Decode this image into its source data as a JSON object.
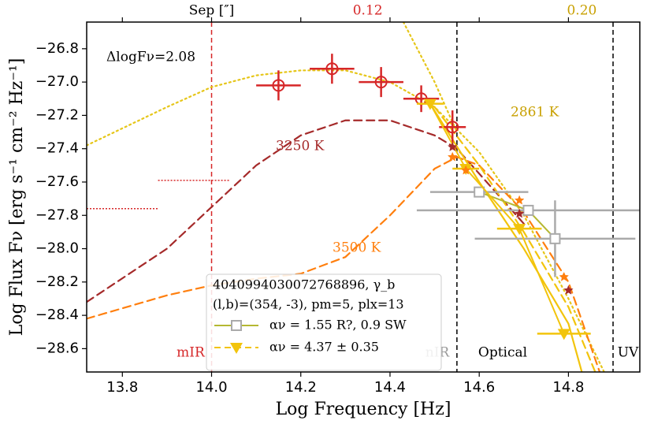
{
  "chart_data": {
    "type": "scatter",
    "xlabel": "Log Frequency [Hz]",
    "ylabel": "Log Flux Fν [erg s⁻¹ cm⁻² Hz⁻¹]",
    "xlim": [
      13.72,
      14.96
    ],
    "ylim": [
      -28.74,
      -26.64
    ],
    "xticks": [
      13.8,
      {
        "value": 14.0,
        "label": "14.0"
      },
      14.2,
      14.4,
      14.6,
      14.8
    ],
    "yticks": [
      {
        "value": -26.8,
        "label": "−26.8"
      },
      {
        "value": -27.0,
        "label": "−27.0"
      },
      {
        "value": -27.2,
        "label": "−27.2"
      },
      {
        "value": -27.4,
        "label": "−27.4"
      },
      {
        "value": -27.6,
        "label": "−27.6"
      },
      {
        "value": -27.8,
        "label": "−27.8"
      },
      {
        "value": -28.0,
        "label": "−28.0"
      },
      {
        "value": -28.2,
        "label": "−28.2"
      },
      {
        "value": -28.4,
        "label": "−28.4"
      },
      {
        "value": -28.6,
        "label": "−28.6"
      }
    ],
    "curves": [
      {
        "color": "#e6c619",
        "style": "dotted",
        "x": [
          13.72,
          13.9,
          14.0,
          14.1,
          14.2,
          14.3,
          14.4,
          14.5,
          14.6,
          14.7,
          14.8,
          14.88
        ],
        "values": [
          -27.38,
          -27.15,
          -27.03,
          -26.96,
          -26.93,
          -26.93,
          -27.0,
          -27.15,
          -27.42,
          -27.8,
          -28.3,
          -28.74
        ]
      },
      {
        "color": "#e6c619",
        "style": "dotted",
        "x": [
          14.43,
          14.5,
          14.55
        ],
        "values": [
          -26.64,
          -27.0,
          -27.3
        ]
      },
      {
        "color": "#a52a2a",
        "style": "dashed",
        "x": [
          13.72,
          13.9,
          14.0,
          14.1,
          14.2,
          14.3,
          14.4,
          14.5,
          14.55,
          14.6,
          14.7
        ],
        "values": [
          -28.32,
          -28.0,
          -27.75,
          -27.5,
          -27.32,
          -27.23,
          -27.23,
          -27.32,
          -27.4,
          -27.55,
          -27.85
        ]
      },
      {
        "color": "#ff7f0e",
        "style": "dashed",
        "x": [
          13.72,
          13.9,
          14.0,
          14.1,
          14.2,
          14.3,
          14.4,
          14.5,
          14.55,
          14.6,
          14.7,
          14.8,
          14.87
        ],
        "values": [
          -28.42,
          -28.28,
          -28.22,
          -28.18,
          -28.15,
          -28.05,
          -27.8,
          -27.52,
          -27.45,
          -27.5,
          -27.78,
          -28.2,
          -28.74
        ]
      },
      {
        "color": "#f2c40c",
        "style": "dashed",
        "x": [
          14.5,
          14.6,
          14.7,
          14.8,
          14.86
        ],
        "values": [
          -27.15,
          -27.5,
          -27.9,
          -28.35,
          -28.74
        ]
      },
      {
        "color": "#f2c40c",
        "style": "solid",
        "x": [
          14.49,
          14.6,
          14.7,
          14.8,
          14.83
        ],
        "values": [
          -27.13,
          -27.6,
          -28.0,
          -28.45,
          -28.74
        ]
      }
    ],
    "limits": [
      {
        "color": "#d62728",
        "x": [
          13.72,
          13.88
        ],
        "value": -27.76
      },
      {
        "color": "#d62728",
        "x": [
          13.88,
          14.04
        ],
        "value": -27.59
      }
    ],
    "series": [
      {
        "color": "#d62728",
        "marker": "circle",
        "x": [
          14.15,
          14.27,
          14.38,
          14.47,
          14.54
        ],
        "values": [
          -27.02,
          -26.92,
          -27.0,
          -27.1,
          -27.27
        ],
        "xerr": [
          0.05,
          0.05,
          0.05,
          0.04,
          0.03
        ],
        "yerr": [
          0.09,
          0.09,
          0.09,
          0.08,
          0.1
        ]
      },
      {
        "name": "αν = 1.55   R?, 0.9 SW",
        "color": "#aaaaaa",
        "line": "#b5b832",
        "marker": "square",
        "x": [
          14.6,
          14.71,
          14.77
        ],
        "values": [
          -27.66,
          -27.77,
          -27.94
        ],
        "xerr": [
          0.11,
          0.25,
          0.18
        ],
        "yerr": [
          0.02,
          0.0,
          0.23
        ]
      },
      {
        "name": "αν = 4.37 ± 0.35",
        "color": "#f2c40c",
        "line": "#f2c40c",
        "marker": "triangle",
        "x": [
          14.49,
          14.57,
          14.69,
          14.79
        ],
        "values": [
          -27.13,
          -27.52,
          -27.88,
          -28.51
        ],
        "xerr": [
          0.03,
          0.03,
          0.05,
          0.06
        ],
        "yerr": [
          0.0,
          0.0,
          0.0,
          0.0
        ]
      },
      {
        "color": "#a52a2a",
        "marker": "star",
        "x": [
          14.54,
          14.69,
          14.8
        ],
        "values": [
          -27.39,
          -27.79,
          -28.25
        ]
      },
      {
        "color": "#ff7f0e",
        "marker": "star",
        "x": [
          14.54,
          14.57,
          14.69,
          14.79
        ],
        "values": [
          -27.45,
          -27.53,
          -27.71,
          -28.17
        ]
      }
    ],
    "vlines": [
      {
        "x": 14.0,
        "color": "#d62728"
      },
      {
        "x": 14.55,
        "color": "#000000"
      },
      {
        "x": 14.9,
        "color": "#000000"
      }
    ],
    "regions": [
      {
        "text": "mIR",
        "color": "#d62728"
      },
      {
        "text": "nIR",
        "color": "#999999"
      },
      {
        "text": "Optical",
        "color": "#000000"
      },
      {
        "text": "UV",
        "color": "#000000"
      }
    ],
    "top_labels": [
      {
        "text": "Sep [″]",
        "x": 14.0,
        "color": "#000000"
      },
      {
        "text": "0.12",
        "x": 14.35,
        "color": "#d62728"
      },
      {
        "text": "0.20",
        "x": 14.83,
        "color": "#c8a000"
      }
    ],
    "annotations": [
      {
        "text": "ΔlogFν=2.08",
        "color": "#000000"
      },
      {
        "text": "2861 K",
        "color": "#c8a000"
      },
      {
        "text": "3250 K",
        "color": "#a52a2a"
      },
      {
        "text": "3500 K",
        "color": "#ff7f0e"
      }
    ],
    "legend_title": [
      "4040994030072768896, γ_b",
      "(l,b)=(354, -3), pm=5, plx=13"
    ]
  }
}
